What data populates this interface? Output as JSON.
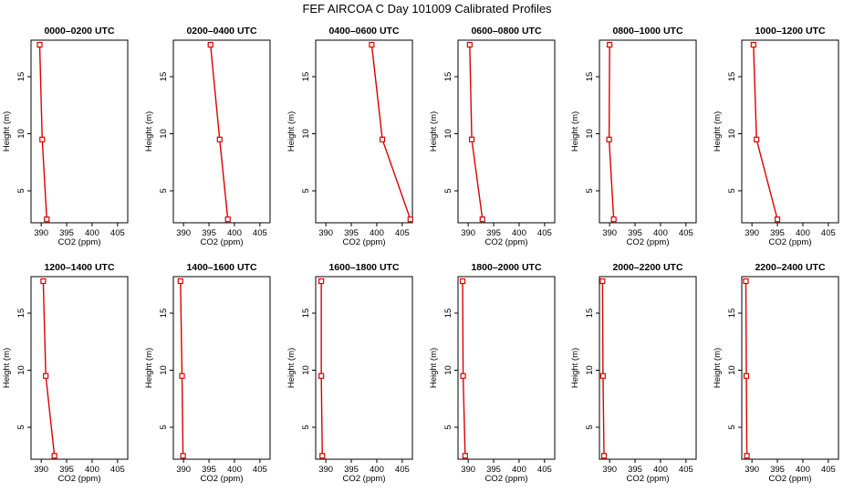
{
  "title": "FEF AIRCOA C  Day 101009  Calibrated Profiles",
  "chart_data": [
    {
      "type": "line",
      "title": "0000–0200 UTC",
      "xlabel": "CO2 (ppm)",
      "ylabel": "Height (m)",
      "xlim": [
        388,
        407
      ],
      "ylim": [
        2.2,
        18.2
      ],
      "x_ticks": [
        390,
        395,
        400,
        405
      ],
      "y_ticks": [
        5,
        10,
        15
      ],
      "series": [
        {
          "x": [
            389.7,
            390.2,
            391.1
          ],
          "y": [
            17.8,
            9.5,
            2.5
          ]
        }
      ]
    },
    {
      "type": "line",
      "title": "0200–0400 UTC",
      "xlabel": "CO2 (ppm)",
      "ylabel": "Height (m)",
      "xlim": [
        388,
        407
      ],
      "ylim": [
        2.2,
        18.2
      ],
      "x_ticks": [
        390,
        395,
        400,
        405
      ],
      "y_ticks": [
        5,
        10,
        15
      ],
      "series": [
        {
          "x": [
            395.3,
            397.1,
            398.7
          ],
          "y": [
            17.8,
            9.5,
            2.5
          ]
        }
      ]
    },
    {
      "type": "line",
      "title": "0400–0600 UTC",
      "xlabel": "CO2 (ppm)",
      "ylabel": "Height (m)",
      "xlim": [
        388,
        407
      ],
      "ylim": [
        2.2,
        18.2
      ],
      "x_ticks": [
        390,
        395,
        400,
        405
      ],
      "y_ticks": [
        5,
        10,
        15
      ],
      "series": [
        {
          "x": [
            399.0,
            401.1,
            406.6
          ],
          "y": [
            17.8,
            9.5,
            2.5
          ]
        }
      ]
    },
    {
      "type": "line",
      "title": "0600–0800 UTC",
      "xlabel": "CO2 (ppm)",
      "ylabel": "Height (m)",
      "xlim": [
        388,
        407
      ],
      "ylim": [
        2.2,
        18.2
      ],
      "x_ticks": [
        390,
        395,
        400,
        405
      ],
      "y_ticks": [
        5,
        10,
        15
      ],
      "series": [
        {
          "x": [
            390.3,
            390.7,
            392.8
          ],
          "y": [
            17.8,
            9.5,
            2.5
          ]
        }
      ]
    },
    {
      "type": "line",
      "title": "0800–1000 UTC",
      "xlabel": "CO2 (ppm)",
      "ylabel": "Height (m)",
      "xlim": [
        388,
        407
      ],
      "ylim": [
        2.2,
        18.2
      ],
      "x_ticks": [
        390,
        395,
        400,
        405
      ],
      "y_ticks": [
        5,
        10,
        15
      ],
      "series": [
        {
          "x": [
            390.0,
            389.9,
            390.8
          ],
          "y": [
            17.8,
            9.5,
            2.5
          ]
        }
      ]
    },
    {
      "type": "line",
      "title": "1000–1200 UTC",
      "xlabel": "CO2 (ppm)",
      "ylabel": "Height (m)",
      "xlim": [
        388,
        407
      ],
      "ylim": [
        2.2,
        18.2
      ],
      "x_ticks": [
        390,
        395,
        400,
        405
      ],
      "y_ticks": [
        5,
        10,
        15
      ],
      "series": [
        {
          "x": [
            390.3,
            390.9,
            395.0
          ],
          "y": [
            17.8,
            9.5,
            2.5
          ]
        }
      ]
    },
    {
      "type": "line",
      "title": "1200–1400 UTC",
      "xlabel": "CO2 (ppm)",
      "ylabel": "Height (m)",
      "xlim": [
        388,
        407
      ],
      "ylim": [
        2.2,
        18.2
      ],
      "x_ticks": [
        390,
        395,
        400,
        405
      ],
      "y_ticks": [
        5,
        10,
        15
      ],
      "series": [
        {
          "x": [
            390.4,
            390.9,
            392.6
          ],
          "y": [
            17.8,
            9.5,
            2.5
          ]
        }
      ]
    },
    {
      "type": "line",
      "title": "1400–1600 UTC",
      "xlabel": "CO2 (ppm)",
      "ylabel": "Height (m)",
      "xlim": [
        388,
        407
      ],
      "ylim": [
        2.2,
        18.2
      ],
      "x_ticks": [
        390,
        395,
        400,
        405
      ],
      "y_ticks": [
        5,
        10,
        15
      ],
      "series": [
        {
          "x": [
            389.4,
            389.7,
            389.9
          ],
          "y": [
            17.8,
            9.5,
            2.5
          ]
        }
      ]
    },
    {
      "type": "line",
      "title": "1600–1800 UTC",
      "xlabel": "CO2 (ppm)",
      "ylabel": "Height (m)",
      "xlim": [
        388,
        407
      ],
      "ylim": [
        2.2,
        18.2
      ],
      "x_ticks": [
        390,
        395,
        400,
        405
      ],
      "y_ticks": [
        5,
        10,
        15
      ],
      "series": [
        {
          "x": [
            389.1,
            389.1,
            389.3
          ],
          "y": [
            17.8,
            9.5,
            2.5
          ]
        }
      ]
    },
    {
      "type": "line",
      "title": "1800–2000 UTC",
      "xlabel": "CO2 (ppm)",
      "ylabel": "Height (m)",
      "xlim": [
        388,
        407
      ],
      "ylim": [
        2.2,
        18.2
      ],
      "x_ticks": [
        390,
        395,
        400,
        405
      ],
      "y_ticks": [
        5,
        10,
        15
      ],
      "series": [
        {
          "x": [
            388.9,
            389.0,
            389.4
          ],
          "y": [
            17.8,
            9.5,
            2.5
          ]
        }
      ]
    },
    {
      "type": "line",
      "title": "2000–2200 UTC",
      "xlabel": "CO2 (ppm)",
      "ylabel": "Height (m)",
      "xlim": [
        388,
        407
      ],
      "ylim": [
        2.2,
        18.2
      ],
      "x_ticks": [
        390,
        395,
        400,
        405
      ],
      "y_ticks": [
        5,
        10,
        15
      ],
      "series": [
        {
          "x": [
            388.6,
            388.7,
            388.9
          ],
          "y": [
            17.8,
            9.5,
            2.5
          ]
        }
      ]
    },
    {
      "type": "line",
      "title": "2200–2400 UTC",
      "xlabel": "CO2 (ppm)",
      "ylabel": "Height (m)",
      "xlim": [
        388,
        407
      ],
      "ylim": [
        2.2,
        18.2
      ],
      "x_ticks": [
        390,
        395,
        400,
        405
      ],
      "y_ticks": [
        5,
        10,
        15
      ],
      "series": [
        {
          "x": [
            388.8,
            388.9,
            389.0
          ],
          "y": [
            17.8,
            9.5,
            2.5
          ]
        }
      ]
    }
  ],
  "colors": {
    "line": "#dd0000",
    "marker": "#dd0000",
    "axis": "#000000"
  }
}
